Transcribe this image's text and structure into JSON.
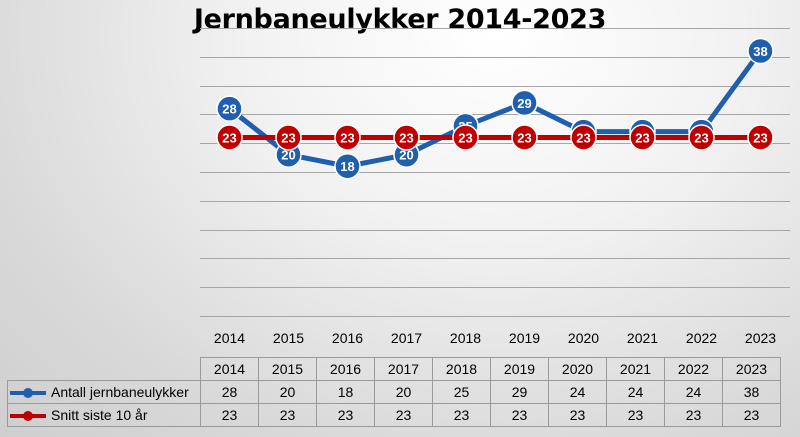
{
  "chart_data": {
    "type": "line",
    "title": "Jernbaneulykker 2014-2023",
    "categories": [
      "2014",
      "2015",
      "2016",
      "2017",
      "2018",
      "2019",
      "2020",
      "2021",
      "2022",
      "2023"
    ],
    "series": [
      {
        "name": "Antall jernbaneulykker",
        "color": "#1f5fae",
        "values": [
          28,
          20,
          18,
          20,
          25,
          29,
          24,
          24,
          24,
          38
        ]
      },
      {
        "name": "Snitt siste 10 år",
        "color": "#c00000",
        "values": [
          23,
          23,
          23,
          23,
          23,
          23,
          23,
          23,
          23,
          23
        ]
      }
    ],
    "xlabel": "",
    "ylabel": "",
    "ylim": [
      -8,
      42
    ],
    "grid": true,
    "y_tick_labels_shown": false,
    "data_labels_shown": true,
    "data_table_shown": true
  }
}
